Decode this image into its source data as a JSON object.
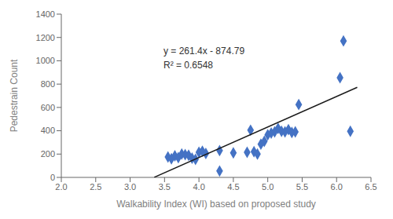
{
  "chart_data": {
    "type": "scatter",
    "xlabel": "Walkability Index (WI) based on proposed study",
    "ylabel": "Pedestrain Count",
    "xlim": [
      2.0,
      6.5
    ],
    "ylim": [
      0,
      1400
    ],
    "xticks": [
      {
        "value": 2.0,
        "label": "2.0"
      },
      {
        "value": 2.5,
        "label": "2.5"
      },
      {
        "value": 3.0,
        "label": "3.0"
      },
      {
        "value": 3.5,
        "label": "3.5"
      },
      {
        "value": 4.0,
        "label": "4.0"
      },
      {
        "value": 4.5,
        "label": "4.5"
      },
      {
        "value": 5.0,
        "label": "5.0"
      },
      {
        "value": 5.5,
        "label": "5.5"
      },
      {
        "value": 6.0,
        "label": "6.0"
      },
      {
        "value": 6.5,
        "label": "6.5"
      }
    ],
    "yticks": [
      0,
      200,
      400,
      600,
      800,
      1000,
      1200,
      1400
    ],
    "grid": false,
    "annotation": "y = 261.4x - 874.79\nR² = 0.6548",
    "series": [
      {
        "type": "scatter",
        "color": "#4472C4",
        "marker": "diamond",
        "x": [
          3.55,
          3.6,
          3.65,
          3.7,
          3.75,
          3.8,
          3.85,
          3.9,
          3.95,
          4.0,
          4.05,
          4.1,
          4.3,
          4.3,
          4.5,
          4.7,
          4.75,
          4.8,
          4.85,
          4.9,
          4.95,
          5.0,
          5.05,
          5.1,
          5.15,
          5.2,
          5.25,
          5.3,
          5.35,
          5.4,
          5.45,
          6.05,
          6.1,
          6.2
        ],
        "values": [
          175,
          160,
          185,
          170,
          200,
          195,
          190,
          165,
          155,
          215,
          225,
          205,
          55,
          230,
          210,
          215,
          405,
          220,
          200,
          285,
          310,
          365,
          380,
          390,
          420,
          395,
          390,
          410,
          385,
          390,
          625,
          855,
          1170,
          395
        ]
      },
      {
        "type": "line",
        "color": "#1a1a1a",
        "x": [
          3.35,
          6.3
        ],
        "values": [
          0.9,
          772.03
        ]
      }
    ]
  }
}
